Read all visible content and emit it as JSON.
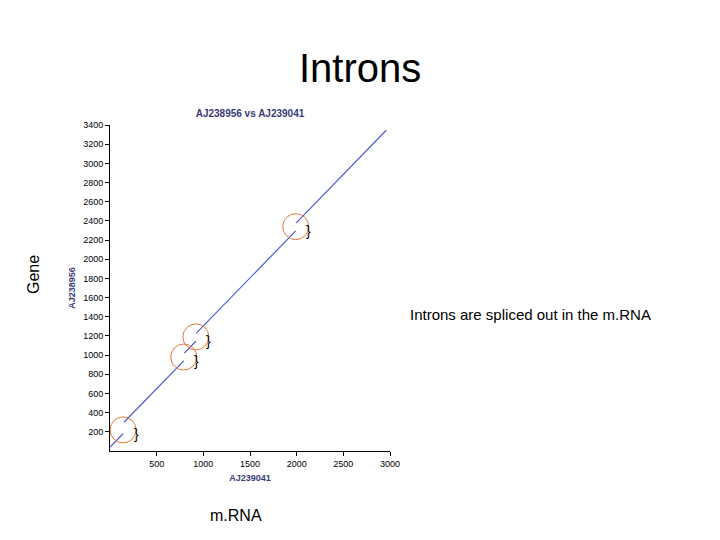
{
  "slide_title": "Introns",
  "caption": "Introns are spliced out in the m.RNA",
  "chart_data": {
    "type": "line",
    "title": "AJ238956 vs AJ239041",
    "x_label": "AJ239041",
    "y_label": "AJ238956",
    "outer_x_label": "m.RNA",
    "outer_y_label": "Gene",
    "color": "#4a5bd6",
    "grid": false,
    "xlim": [
      0,
      3000
    ],
    "ylim": [
      0,
      3400
    ],
    "xticks": [
      500,
      1000,
      1500,
      2000,
      2500,
      3000
    ],
    "yticks": [
      200,
      400,
      600,
      800,
      1000,
      1200,
      1400,
      1600,
      1800,
      2000,
      2200,
      2400,
      2600,
      2800,
      3000,
      3200,
      3400
    ],
    "x": [
      0,
      140,
      null,
      150,
      790,
      null,
      795,
      920,
      null,
      925,
      1990,
      null,
      1995,
      2960
    ],
    "values": [
      40,
      180,
      null,
      300,
      940,
      null,
      1020,
      1145,
      null,
      1230,
      2295,
      null,
      2380,
      3345
    ],
    "annotations": [
      {
        "x": 140,
        "y": 220,
        "text": "}"
      },
      {
        "x": 790,
        "y": 980,
        "text": "}"
      },
      {
        "x": 920,
        "y": 1190,
        "text": "}"
      },
      {
        "x": 1990,
        "y": 2340,
        "text": "}"
      }
    ]
  }
}
